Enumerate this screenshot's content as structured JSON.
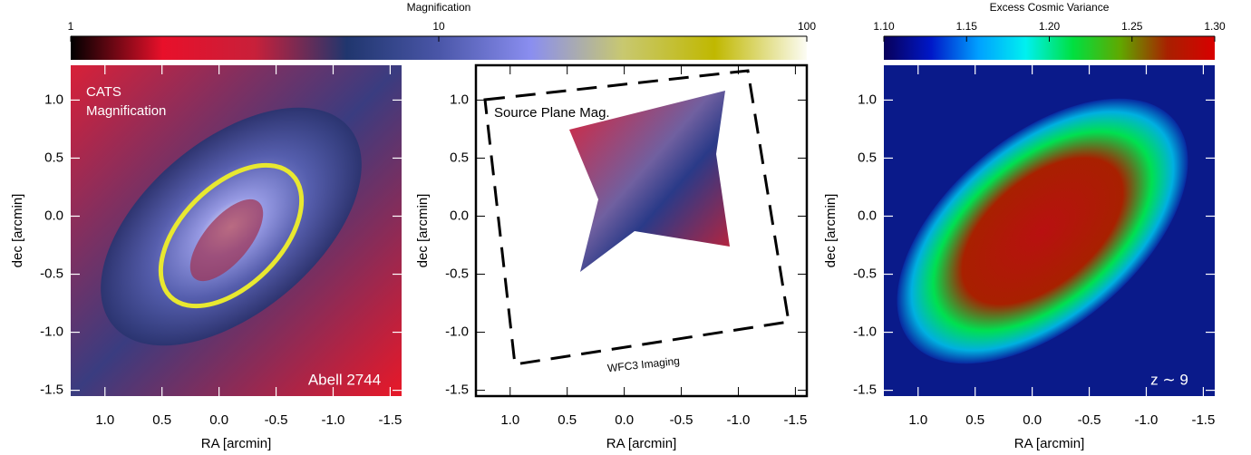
{
  "chart_data": [
    {
      "type": "colorbar",
      "title": "Magnification",
      "log_scale": true,
      "xlim": [
        1,
        100
      ],
      "xticks": [
        1,
        10,
        100
      ],
      "colors": [
        "#000000",
        "#e8102a",
        "#c8203a",
        "#20366e",
        "#4a56a8",
        "#8a8ef0",
        "#c8c870",
        "#c0b800",
        "#fcfcf4"
      ]
    },
    {
      "type": "colorbar",
      "title": "Excess Cosmic Variance",
      "log_scale": false,
      "xlim": [
        1.1,
        1.3
      ],
      "xticks": [
        {
          "value": 1.1,
          "label": "1.10"
        },
        1.15,
        {
          "value": 1.2,
          "label": "1.20"
        },
        1.25,
        {
          "value": 1.3,
          "label": "1.30"
        }
      ],
      "colors": [
        "#08005a",
        "#0018c8",
        "#00a0ff",
        "#00f0f0",
        "#00e040",
        "#60a800",
        "#a82000",
        "#d80000"
      ]
    },
    {
      "type": "image",
      "xlabel": "RA [arcmin]",
      "ylabel": "dec [arcmin]",
      "xlim": [
        1.3,
        -1.6
      ],
      "ylim": [
        -1.55,
        1.3
      ],
      "xticks": [
        {
          "value": 1.0,
          "label": "1.0"
        },
        0.5,
        {
          "value": 0.0,
          "label": "0.0"
        },
        -0.5,
        {
          "value": -1.0,
          "label": "-1.0"
        },
        -1.5
      ],
      "yticks": [
        {
          "value": 1.0,
          "label": "1.0"
        },
        0.5,
        {
          "value": 0.0,
          "label": "0.0"
        },
        -0.5,
        {
          "value": -1.0,
          "label": "-1.0"
        },
        -1.5
      ],
      "annotations": [
        "CATS",
        "Magnification",
        "Abell 2744"
      ]
    },
    {
      "type": "image",
      "xlabel": "RA [arcmin]",
      "ylabel": "dec [arcmin]",
      "xlim": [
        1.3,
        -1.6
      ],
      "ylim": [
        -1.55,
        1.3
      ],
      "xticks": [
        {
          "value": 1.0,
          "label": "1.0"
        },
        0.5,
        {
          "value": 0.0,
          "label": "0.0"
        },
        -0.5,
        {
          "value": -1.0,
          "label": "-1.0"
        },
        -1.5
      ],
      "yticks": [
        {
          "value": 1.0,
          "label": "1.0"
        },
        0.5,
        {
          "value": 0.0,
          "label": "0.0"
        },
        -0.5,
        {
          "value": -1.0,
          "label": "-1.0"
        },
        -1.5
      ],
      "annotations": [
        "Source Plane Mag.",
        "WFC3 Imaging"
      ]
    },
    {
      "type": "image",
      "xlabel": "RA [arcmin]",
      "ylabel": "dec [arcmin]",
      "xlim": [
        1.3,
        -1.6
      ],
      "ylim": [
        -1.55,
        1.3
      ],
      "xticks": [
        {
          "value": 1.0,
          "label": "1.0"
        },
        0.5,
        {
          "value": 0.0,
          "label": "0.0"
        },
        -0.5,
        {
          "value": -1.0,
          "label": "-1.0"
        },
        -1.5
      ],
      "yticks": [
        {
          "value": 1.0,
          "label": "1.0"
        },
        0.5,
        {
          "value": 0.0,
          "label": "0.0"
        },
        -0.5,
        {
          "value": -1.0,
          "label": "-1.0"
        },
        -1.5
      ],
      "annotations": [
        "z ∼ 9"
      ]
    }
  ]
}
